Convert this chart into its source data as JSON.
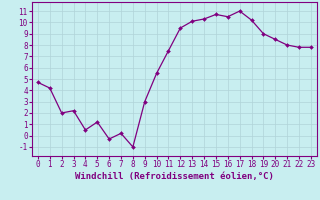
{
  "x": [
    0,
    1,
    2,
    3,
    4,
    5,
    6,
    7,
    8,
    9,
    10,
    11,
    12,
    13,
    14,
    15,
    16,
    17,
    18,
    19,
    20,
    21,
    22,
    23
  ],
  "y": [
    4.7,
    4.2,
    2.0,
    2.2,
    0.5,
    1.2,
    -0.3,
    0.2,
    -1.0,
    3.0,
    5.5,
    7.5,
    9.5,
    10.1,
    10.3,
    10.7,
    10.5,
    11.0,
    10.2,
    9.0,
    8.5,
    8.0,
    7.8,
    7.8
  ],
  "line_color": "#800080",
  "marker": "D",
  "marker_size": 2.0,
  "background_color": "#c8eef0",
  "grid_color": "#b0d4d8",
  "xlabel": "Windchill (Refroidissement éolien,°C)",
  "xlabel_fontsize": 6.5,
  "yticks": [
    -1,
    0,
    1,
    2,
    3,
    4,
    5,
    6,
    7,
    8,
    9,
    10,
    11
  ],
  "xlim": [
    -0.5,
    23.5
  ],
  "ylim": [
    -1.8,
    11.8
  ],
  "tick_fontsize": 5.5,
  "spine_color": "#800080",
  "linewidth": 0.9
}
